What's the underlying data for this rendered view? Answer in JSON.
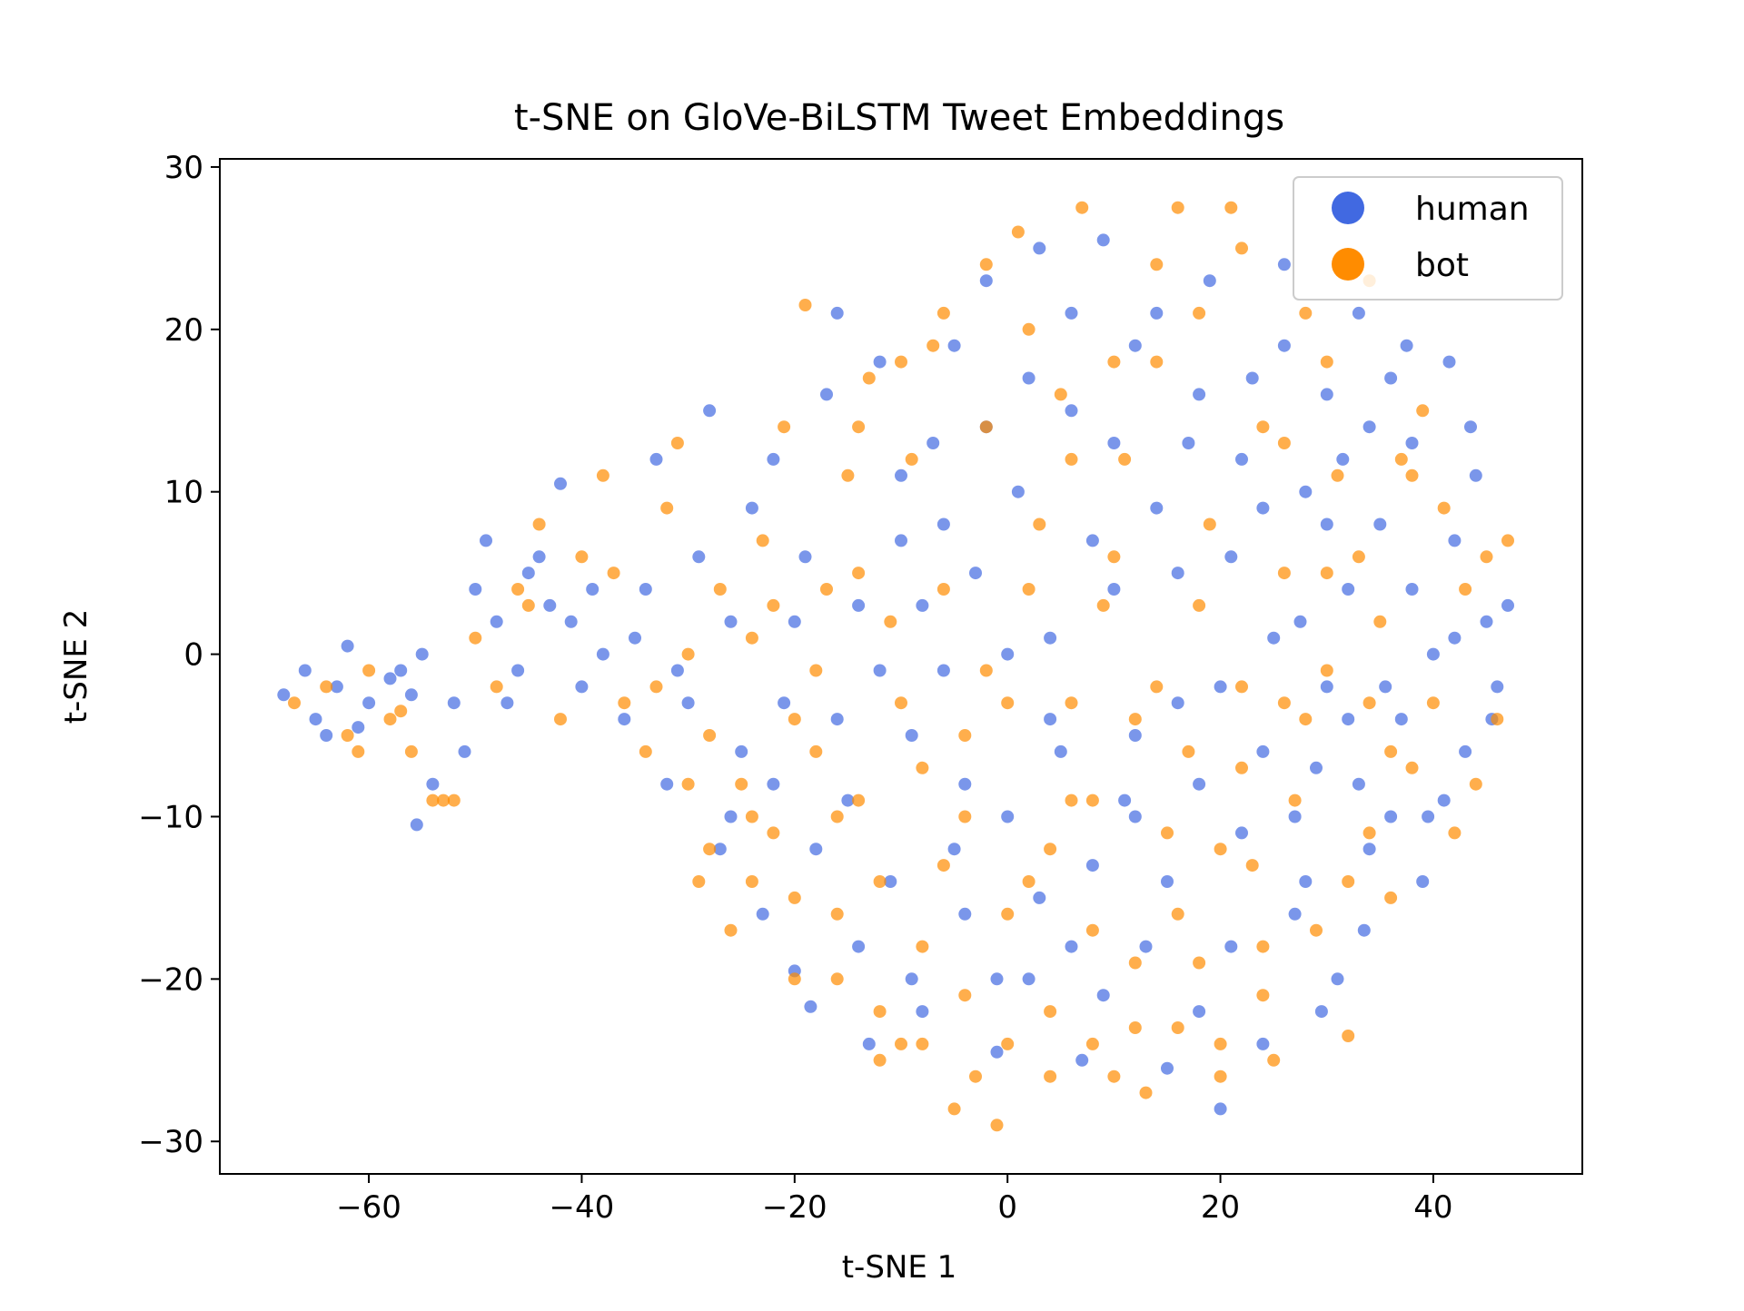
{
  "chart_data": {
    "type": "scatter",
    "title": "t-SNE on GloVe-BiLSTM Tweet Embeddings",
    "xlabel": "t-SNE 1",
    "ylabel": "t-SNE 2",
    "xlim": [
      -74,
      54
    ],
    "ylim": [
      -32,
      30.5
    ],
    "xticks": [
      -60,
      -40,
      -20,
      0,
      20,
      40
    ],
    "yticks": [
      -30,
      -20,
      -10,
      0,
      10,
      20,
      30
    ],
    "xtick_labels": [
      "−60",
      "−40",
      "−20",
      "0",
      "20",
      "40"
    ],
    "ytick_labels": [
      "−30",
      "−20",
      "−10",
      "0",
      "10",
      "20",
      "30"
    ],
    "grid": false,
    "legend_position": "top-right",
    "series": [
      {
        "name": "human",
        "color": "#4169E1",
        "values": [
          [
            -68,
            -2.5
          ],
          [
            -66,
            -1
          ],
          [
            -65,
            -4
          ],
          [
            -63,
            -2
          ],
          [
            -62,
            0.5
          ],
          [
            -60,
            -3
          ],
          [
            -58,
            -1.5
          ],
          [
            -56,
            -2.5
          ],
          [
            -55,
            0
          ],
          [
            -55.5,
            -10.5
          ],
          [
            -54,
            -8
          ],
          [
            -52,
            -3
          ],
          [
            -50,
            4
          ],
          [
            -49,
            7
          ],
          [
            -48,
            2
          ],
          [
            -46,
            -1
          ],
          [
            -45,
            5
          ],
          [
            -43,
            3
          ],
          [
            -42,
            10.5
          ],
          [
            -41,
            2
          ],
          [
            -40,
            -2
          ],
          [
            -38,
            0
          ],
          [
            -36,
            -4
          ],
          [
            -34,
            4
          ],
          [
            -33,
            12
          ],
          [
            -32,
            -8
          ],
          [
            -30,
            -3
          ],
          [
            -29,
            6
          ],
          [
            -28,
            15
          ],
          [
            -27,
            -12
          ],
          [
            -26,
            2
          ],
          [
            -25,
            -6
          ],
          [
            -24,
            9
          ],
          [
            -23,
            -16
          ],
          [
            -22,
            12
          ],
          [
            -21,
            -3
          ],
          [
            -20,
            -19.5
          ],
          [
            -19,
            6
          ],
          [
            -18.5,
            -21.7
          ],
          [
            -17,
            16
          ],
          [
            -16,
            21
          ],
          [
            -15,
            -9
          ],
          [
            -14,
            3
          ],
          [
            -13,
            -24
          ],
          [
            -12,
            18
          ],
          [
            -11,
            -14
          ],
          [
            -10,
            7
          ],
          [
            -9,
            -5
          ],
          [
            -8,
            -22
          ],
          [
            -7,
            13
          ],
          [
            -6,
            -1
          ],
          [
            -5,
            19
          ],
          [
            -4,
            -16
          ],
          [
            -3,
            5
          ],
          [
            -2,
            23
          ],
          [
            -1,
            -24.5
          ],
          [
            0,
            -10
          ],
          [
            1,
            10
          ],
          [
            2,
            -20
          ],
          [
            3,
            25
          ],
          [
            4,
            1
          ],
          [
            5,
            -6
          ],
          [
            6,
            15
          ],
          [
            7,
            -25
          ],
          [
            8,
            -13
          ],
          [
            9,
            25.5
          ],
          [
            10,
            4
          ],
          [
            11,
            -9
          ],
          [
            12,
            19
          ],
          [
            13,
            -18
          ],
          [
            14,
            9
          ],
          [
            15,
            -25.5
          ],
          [
            16,
            -3
          ],
          [
            17,
            13
          ],
          [
            18,
            -22
          ],
          [
            19,
            23
          ],
          [
            20,
            -28
          ],
          [
            21,
            6
          ],
          [
            22,
            -11
          ],
          [
            23,
            17
          ],
          [
            24,
            -24
          ],
          [
            25,
            1
          ],
          [
            26,
            24
          ],
          [
            27,
            -16
          ],
          [
            28,
            10
          ],
          [
            29,
            -7
          ],
          [
            30,
            16
          ],
          [
            31,
            -20
          ],
          [
            32,
            4
          ],
          [
            33,
            21
          ],
          [
            34,
            -12
          ],
          [
            35,
            8
          ],
          [
            36,
            17
          ],
          [
            37,
            -4
          ],
          [
            38,
            13
          ],
          [
            39,
            -14
          ],
          [
            40,
            0
          ],
          [
            41,
            -9
          ],
          [
            42,
            7
          ],
          [
            43,
            -6
          ],
          [
            44,
            11
          ],
          [
            45,
            2
          ],
          [
            46,
            -2
          ],
          [
            47,
            3
          ],
          [
            45.5,
            -4
          ],
          [
            43.5,
            14
          ],
          [
            41.5,
            18
          ],
          [
            39.5,
            -10
          ],
          [
            37.5,
            19
          ],
          [
            35.5,
            -2
          ],
          [
            33.5,
            -17
          ],
          [
            31.5,
            12
          ],
          [
            29.5,
            -22
          ],
          [
            27.5,
            2
          ],
          [
            -64,
            -5
          ],
          [
            -61,
            -4.5
          ],
          [
            -57,
            -1
          ],
          [
            -51,
            -6
          ],
          [
            -47,
            -3
          ],
          [
            -44,
            6
          ],
          [
            -39,
            4
          ],
          [
            -35,
            1
          ],
          [
            -31,
            -1
          ],
          [
            -26,
            -10
          ],
          [
            -22,
            -8
          ],
          [
            -18,
            -12
          ],
          [
            -14,
            -18
          ],
          [
            -9,
            -20
          ],
          [
            -5,
            -12
          ],
          [
            -1,
            -20
          ],
          [
            3,
            -15
          ],
          [
            6,
            -18
          ],
          [
            9,
            -21
          ],
          [
            12,
            -10
          ],
          [
            15,
            -14
          ],
          [
            18,
            -8
          ],
          [
            21,
            -18
          ],
          [
            24,
            -6
          ],
          [
            27,
            -10
          ],
          [
            30,
            -2
          ],
          [
            33,
            -8
          ],
          [
            36,
            -10
          ],
          [
            -10,
            11
          ],
          [
            -6,
            8
          ],
          [
            -2,
            14
          ],
          [
            2,
            17
          ],
          [
            6,
            21
          ],
          [
            10,
            13
          ],
          [
            14,
            21
          ],
          [
            18,
            16
          ],
          [
            22,
            12
          ],
          [
            26,
            19
          ],
          [
            30,
            8
          ],
          [
            34,
            14
          ],
          [
            38,
            4
          ],
          [
            42,
            1
          ],
          [
            -20,
            2
          ],
          [
            -16,
            -4
          ],
          [
            -12,
            -1
          ],
          [
            -8,
            3
          ],
          [
            -4,
            -8
          ],
          [
            0,
            0
          ],
          [
            4,
            -4
          ],
          [
            8,
            7
          ],
          [
            12,
            -5
          ],
          [
            16,
            5
          ],
          [
            20,
            -2
          ],
          [
            24,
            9
          ],
          [
            28,
            -14
          ],
          [
            32,
            -4
          ]
        ]
      },
      {
        "name": "bot",
        "color": "#FF8C00",
        "values": [
          [
            -67,
            -3
          ],
          [
            -64,
            -2
          ],
          [
            -62,
            -5
          ],
          [
            -60,
            -1
          ],
          [
            -58,
            -4
          ],
          [
            -56,
            -6
          ],
          [
            -54,
            -9
          ],
          [
            -52,
            -9
          ],
          [
            -50,
            1
          ],
          [
            -48,
            -2
          ],
          [
            -46,
            4
          ],
          [
            -44,
            8
          ],
          [
            -42,
            -4
          ],
          [
            -40,
            6
          ],
          [
            -38,
            11
          ],
          [
            -36,
            -3
          ],
          [
            -34,
            -6
          ],
          [
            -32,
            9
          ],
          [
            -31,
            13
          ],
          [
            -30,
            0
          ],
          [
            -29,
            -14
          ],
          [
            -28,
            -5
          ],
          [
            -27,
            4
          ],
          [
            -26,
            -17
          ],
          [
            -25,
            -8
          ],
          [
            -24,
            1
          ],
          [
            -23,
            7
          ],
          [
            -22,
            -11
          ],
          [
            -21,
            14
          ],
          [
            -20,
            -20
          ],
          [
            -19,
            21.5
          ],
          [
            -18,
            -6
          ],
          [
            -17,
            4
          ],
          [
            -16,
            -16
          ],
          [
            -15,
            11
          ],
          [
            -14,
            -9
          ],
          [
            -13,
            17
          ],
          [
            -12,
            -22
          ],
          [
            -11,
            2
          ],
          [
            -10,
            -24
          ],
          [
            -9,
            12
          ],
          [
            -8,
            -7
          ],
          [
            -7,
            19
          ],
          [
            -6,
            -13
          ],
          [
            -5,
            -28
          ],
          [
            -4,
            -5
          ],
          [
            -3,
            -26
          ],
          [
            -2,
            14
          ],
          [
            -1,
            -29
          ],
          [
            0,
            -3
          ],
          [
            1,
            26
          ],
          [
            2,
            -14
          ],
          [
            3,
            8
          ],
          [
            4,
            -22
          ],
          [
            5,
            16
          ],
          [
            6,
            -9
          ],
          [
            7,
            27.5
          ],
          [
            8,
            -17
          ],
          [
            9,
            3
          ],
          [
            10,
            -26
          ],
          [
            11,
            12
          ],
          [
            12,
            -4
          ],
          [
            13,
            -27
          ],
          [
            14,
            18
          ],
          [
            15,
            -11
          ],
          [
            16,
            27.5
          ],
          [
            17,
            -6
          ],
          [
            18,
            -19
          ],
          [
            19,
            8
          ],
          [
            20,
            -26
          ],
          [
            21,
            27.5
          ],
          [
            22,
            -2
          ],
          [
            23,
            -13
          ],
          [
            24,
            14
          ],
          [
            25,
            -25
          ],
          [
            26,
            5
          ],
          [
            27,
            -9
          ],
          [
            28,
            21
          ],
          [
            29,
            -17
          ],
          [
            30,
            -1
          ],
          [
            31,
            11
          ],
          [
            32,
            -23.5
          ],
          [
            33,
            6
          ],
          [
            34,
            -11
          ],
          [
            35,
            2
          ],
          [
            36,
            -15
          ],
          [
            37,
            12
          ],
          [
            38,
            -7
          ],
          [
            39,
            15
          ],
          [
            40,
            -3
          ],
          [
            41,
            9
          ],
          [
            42,
            -11
          ],
          [
            43,
            4
          ],
          [
            44,
            -8
          ],
          [
            45,
            6
          ],
          [
            46,
            -4
          ],
          [
            47,
            7
          ],
          [
            -61,
            -6
          ],
          [
            -57,
            -3.5
          ],
          [
            -53,
            -9
          ],
          [
            -45,
            3
          ],
          [
            -37,
            5
          ],
          [
            -33,
            -2
          ],
          [
            -24,
            -10
          ],
          [
            -20,
            -4
          ],
          [
            -16,
            -10
          ],
          [
            -12,
            -14
          ],
          [
            -8,
            -18
          ],
          [
            -4,
            -10
          ],
          [
            0,
            -16
          ],
          [
            4,
            -12
          ],
          [
            8,
            -9
          ],
          [
            12,
            -19
          ],
          [
            16,
            -16
          ],
          [
            20,
            -12
          ],
          [
            24,
            -18
          ],
          [
            28,
            -4
          ],
          [
            32,
            -14
          ],
          [
            36,
            -6
          ],
          [
            -14,
            14
          ],
          [
            -10,
            18
          ],
          [
            -6,
            21
          ],
          [
            -2,
            24
          ],
          [
            2,
            20
          ],
          [
            6,
            12
          ],
          [
            10,
            18
          ],
          [
            14,
            24
          ],
          [
            18,
            21
          ],
          [
            22,
            25
          ],
          [
            26,
            13
          ],
          [
            30,
            18
          ],
          [
            34,
            23
          ],
          [
            38,
            11
          ],
          [
            -22,
            3
          ],
          [
            -18,
            -1
          ],
          [
            -14,
            5
          ],
          [
            -10,
            -3
          ],
          [
            -6,
            4
          ],
          [
            -2,
            -1
          ],
          [
            2,
            4
          ],
          [
            6,
            -3
          ],
          [
            10,
            6
          ],
          [
            14,
            -2
          ],
          [
            18,
            3
          ],
          [
            22,
            -7
          ],
          [
            26,
            -3
          ],
          [
            30,
            5
          ],
          [
            34,
            -3
          ],
          [
            -30,
            -8
          ],
          [
            -28,
            -12
          ],
          [
            -24,
            -14
          ],
          [
            -20,
            -15
          ],
          [
            -16,
            -20
          ],
          [
            -12,
            -25
          ],
          [
            -8,
            -24
          ],
          [
            -4,
            -21
          ],
          [
            0,
            -24
          ],
          [
            4,
            -26
          ],
          [
            8,
            -24
          ],
          [
            12,
            -23
          ],
          [
            16,
            -23
          ],
          [
            20,
            -24
          ],
          [
            24,
            -21
          ]
        ]
      }
    ]
  }
}
